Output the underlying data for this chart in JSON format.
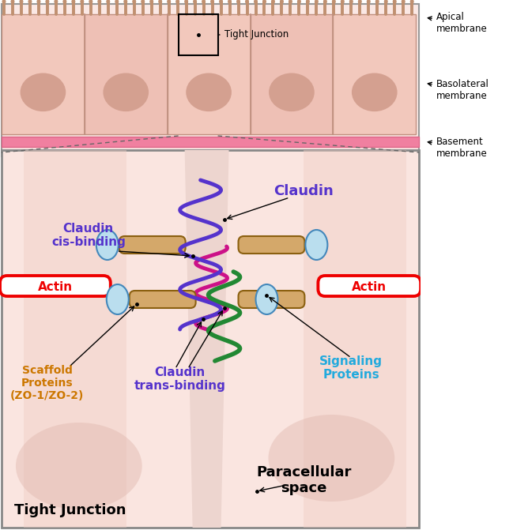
{
  "bg_color": "#FDECEA",
  "cell_bg": "#F5D5CC",
  "cell_border": "#C8A090",
  "cell_fill": "#F2C5B8",
  "nucleus_color": "#D4A090",
  "basement_color": "#F080A0",
  "actin_color": "#FF0000",
  "scaffold_color": "#CC8833",
  "claudin_cis_color": "#5544CC",
  "claudin_trans_color": "#AA22AA",
  "claudin_green_color": "#228833",
  "signaling_color": "#22AADD",
  "annotation_color": "#333333",
  "tight_junction_box_label": "Tight Junction",
  "apical_label": "Apical\nmembrane",
  "basolateral_label": "Basolateral\nmembrane",
  "basement_label": "Basement\nmembrane",
  "claudin_label": "Claudin",
  "claudin_cis_label": "Claudin\ncis-binding",
  "claudin_trans_label": "Claudin\ntrans-binding",
  "actin_label": "Actin",
  "scaffold_label": "Scaffold\nProteins\n(ZO-1/ZO-2)",
  "signaling_label": "Signaling\nProteins",
  "tight_junction_label": "Tight Junction",
  "paracellular_label": "Paracellular\nspace",
  "fig_width": 6.49,
  "fig_height": 6.71
}
